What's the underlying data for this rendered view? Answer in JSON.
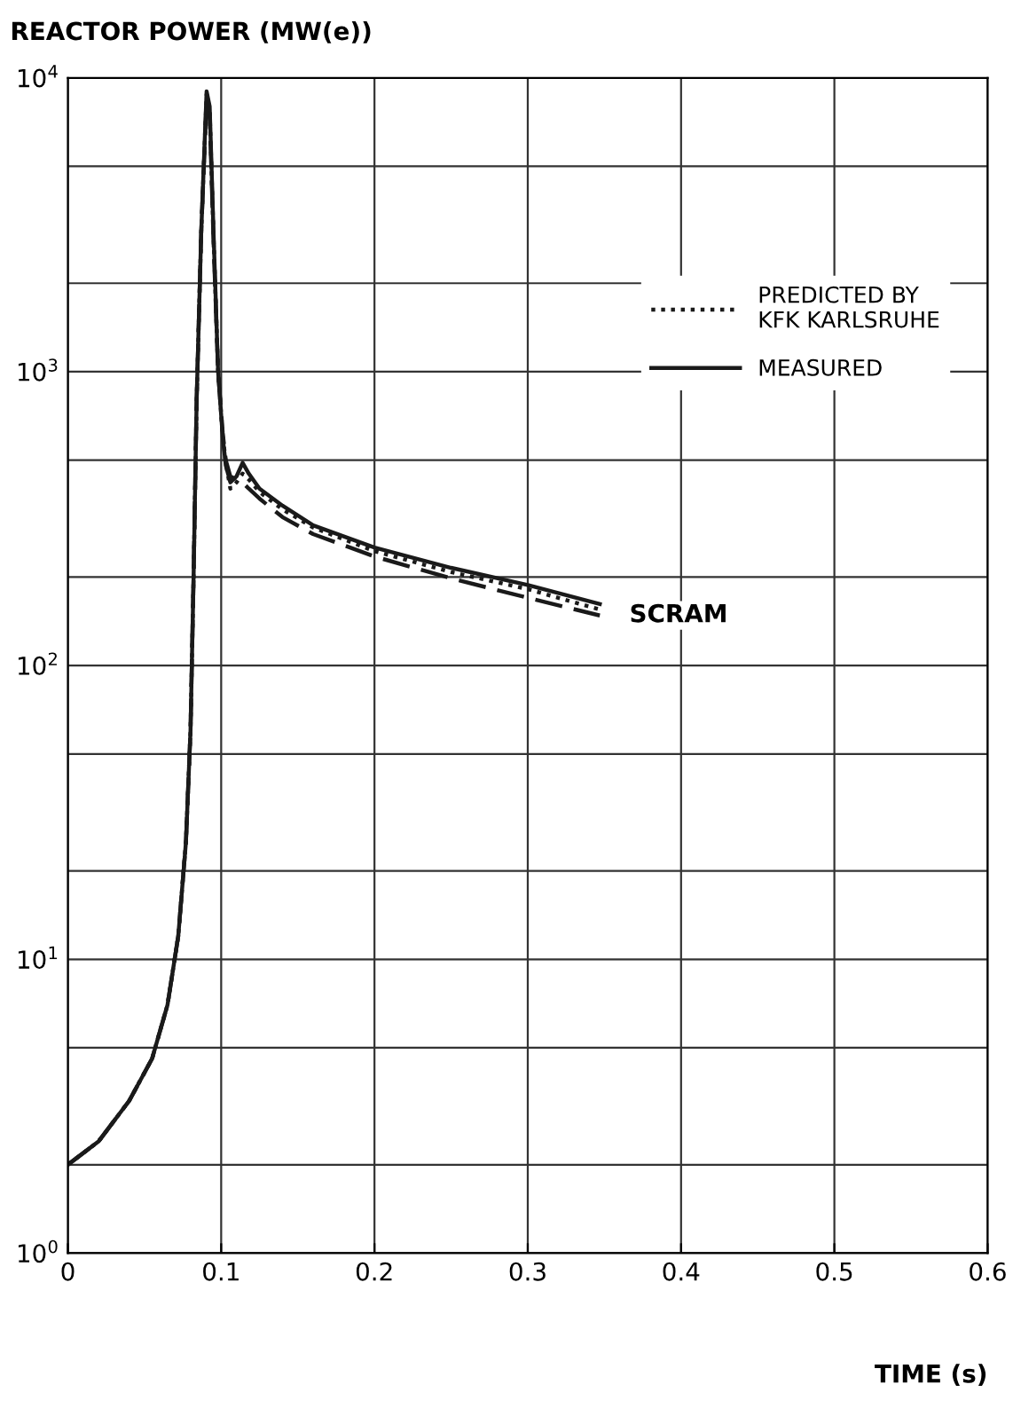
{
  "chart_data": {
    "type": "line",
    "xlabel": "TIME (s)",
    "ylabel": "REACTOR POWER (MW(e))",
    "log": "y",
    "xlim": [
      0,
      0.6
    ],
    "xticks": [
      0,
      0.1,
      0.2,
      0.3,
      0.4,
      0.5,
      0.6
    ],
    "ylim": [
      1,
      10000
    ],
    "yticks": [
      {
        "value": 1,
        "label": "10$^{0}$"
      },
      {
        "value": 2,
        "label": null
      },
      {
        "value": 5,
        "label": null
      },
      {
        "value": 10,
        "label": "10$^{1}$"
      },
      {
        "value": 20,
        "label": null
      },
      {
        "value": 50,
        "label": null
      },
      {
        "value": 100,
        "label": "10$^{2}$"
      },
      {
        "value": 200,
        "label": null
      },
      {
        "value": 500,
        "label": null
      },
      {
        "value": 1000,
        "label": "10$^{3}$"
      },
      {
        "value": 2000,
        "label": null
      },
      {
        "value": 5000,
        "label": null
      },
      {
        "value": 10000,
        "label": "10$^{4}$"
      }
    ],
    "grid": true,
    "legend": "top right",
    "marker": "none",
    "series": [
      {
        "color": "#1a1a1a",
        "line_style": "dashed",
        "x": [
          0,
          0.02,
          0.04,
          0.055,
          0.065,
          0.072,
          0.077,
          0.08,
          0.082,
          0.084,
          0.087,
          0.0905,
          0.0925,
          0.095,
          0.098,
          0.101,
          0.103,
          0.106,
          0.11,
          0.114,
          0.118,
          0.125,
          0.14,
          0.16,
          0.2,
          0.25,
          0.3,
          0.347
        ],
        "values": [
          2,
          2.4,
          3.3,
          4.6,
          7,
          12,
          25,
          60,
          200,
          800,
          3000,
          8500,
          7500,
          2800,
          1000,
          620,
          500,
          440,
          430,
          420,
          400,
          370,
          320,
          280,
          235,
          198,
          170,
          148
        ]
      },
      {
        "name": "PREDICTED BY\nKFK KARLSRUHE",
        "color": "#1a1a1a",
        "line_style": "dotted",
        "x": [
          0,
          0.02,
          0.04,
          0.055,
          0.065,
          0.072,
          0.077,
          0.08,
          0.082,
          0.084,
          0.087,
          0.0905,
          0.0925,
          0.095,
          0.098,
          0.101,
          0.103,
          0.106,
          0.11,
          0.114,
          0.118,
          0.125,
          0.14,
          0.16,
          0.2,
          0.25,
          0.3,
          0.347
        ],
        "values": [
          2,
          2.4,
          3.3,
          4.6,
          7,
          12,
          25,
          60,
          200,
          800,
          3000,
          8800,
          7800,
          2900,
          1000,
          610,
          490,
          400,
          420,
          450,
          430,
          390,
          340,
          295,
          245,
          208,
          182,
          155
        ]
      },
      {
        "name": "MEASURED",
        "color": "#1a1a1a",
        "line_style": "solid",
        "x": [
          0,
          0.02,
          0.04,
          0.055,
          0.065,
          0.072,
          0.077,
          0.08,
          0.082,
          0.084,
          0.087,
          0.0905,
          0.0925,
          0.095,
          0.098,
          0.101,
          0.103,
          0.106,
          0.11,
          0.114,
          0.118,
          0.125,
          0.14,
          0.16,
          0.2,
          0.25,
          0.3,
          0.347
        ],
        "values": [
          2,
          2.4,
          3.3,
          4.6,
          7,
          12,
          25,
          60,
          200,
          800,
          3000,
          9000,
          8000,
          3000,
          1000,
          600,
          480,
          420,
          440,
          490,
          450,
          400,
          350,
          300,
          252,
          215,
          188,
          162
        ]
      }
    ],
    "annotations": [
      {
        "text": "SCRAM",
        "x": 0.347,
        "y": 160
      }
    ]
  }
}
